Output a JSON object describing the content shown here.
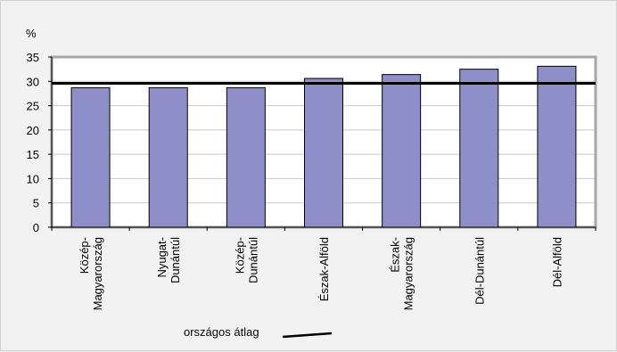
{
  "chart_data": {
    "type": "bar",
    "title": "",
    "ylabel": "%",
    "xlabel": "",
    "categories": [
      [
        "Közép-",
        "Magyarország"
      ],
      [
        "Nyugat-",
        "Dunántúl"
      ],
      [
        "Közép-",
        "Dunántúl"
      ],
      [
        "Észak-Alföld"
      ],
      [
        "Észak-",
        "Magyarország"
      ],
      [
        "Dél-Dunántúl"
      ],
      [
        "Dél-Alföld"
      ]
    ],
    "series": [
      {
        "values": [
          28.7,
          28.7,
          28.7,
          30.6,
          31.4,
          32.5,
          33.1
        ]
      }
    ],
    "reference_line": {
      "name": "országos átlag",
      "value": 29.6
    },
    "yticks": [
      0,
      5,
      10,
      15,
      20,
      25,
      30,
      35
    ],
    "ylim": [
      0,
      35
    ],
    "grid": true,
    "legend_position": "bottom",
    "colors": {
      "bar": "#8e8fc8",
      "bar_stroke": "#000000",
      "grid": "#c8c8c8",
      "plot_border": "#a6a6a6",
      "average_line": "#000000"
    }
  }
}
